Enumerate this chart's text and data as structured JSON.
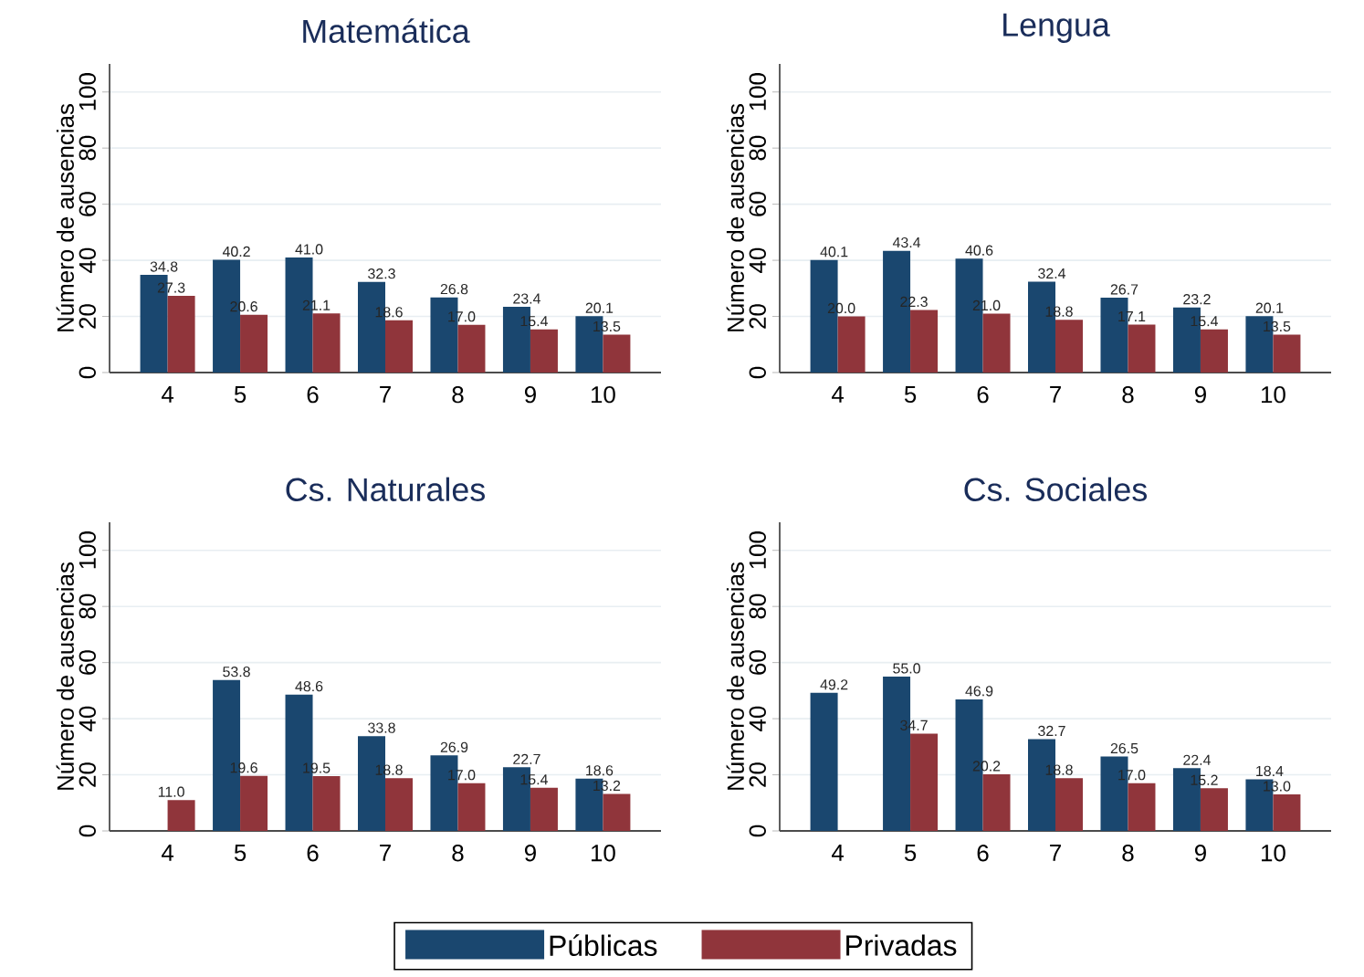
{
  "chart_data": [
    {
      "type": "bar",
      "title": "Matemática",
      "ylabel": "Número de ausencias",
      "categories": [
        "4",
        "5",
        "6",
        "7",
        "8",
        "9",
        "10"
      ],
      "ylim": [
        0,
        110
      ],
      "yticks": [
        0,
        20,
        40,
        60,
        80,
        100
      ],
      "grid": "y",
      "series": [
        {
          "color": "#1a476f",
          "values": [
            34.8,
            40.2,
            41.0,
            32.3,
            26.8,
            23.4,
            20.1
          ],
          "value_labels": [
            "34.8",
            "40.2",
            "41.0",
            "32.3",
            "26.8",
            "23.4",
            "20.1"
          ]
        },
        {
          "color": "#90353b",
          "values": [
            27.3,
            20.6,
            21.1,
            18.6,
            17.0,
            15.4,
            13.5
          ],
          "value_labels": [
            "27.3",
            "20.6",
            "21.1",
            "18.6",
            "17.0",
            "15.4",
            "13.5"
          ]
        }
      ]
    },
    {
      "type": "bar",
      "title": "Lengua",
      "ylabel": "Número de ausencias",
      "categories": [
        "4",
        "5",
        "6",
        "7",
        "8",
        "9",
        "10"
      ],
      "ylim": [
        0,
        110
      ],
      "yticks": [
        0,
        20,
        40,
        60,
        80,
        100
      ],
      "grid": "y",
      "series": [
        {
          "color": "#1a476f",
          "values": [
            40.1,
            43.4,
            40.6,
            32.4,
            26.7,
            23.2,
            20.1
          ],
          "value_labels": [
            "40.1",
            "43.4",
            "40.6",
            "32.4",
            "26.7",
            "23.2",
            "20.1"
          ]
        },
        {
          "color": "#90353b",
          "values": [
            20.0,
            22.3,
            21.0,
            18.8,
            17.1,
            15.4,
            13.5
          ],
          "value_labels": [
            "20.0",
            "22.3",
            "21.0",
            "18.8",
            "17.1",
            "15.4",
            "13.5"
          ]
        }
      ]
    },
    {
      "type": "bar",
      "title": "Cs. Naturales",
      "ylabel": "Número de ausencias",
      "categories": [
        "4",
        "5",
        "6",
        "7",
        "8",
        "9",
        "10"
      ],
      "ylim": [
        0,
        110
      ],
      "yticks": [
        0,
        20,
        40,
        60,
        80,
        100
      ],
      "grid": "y",
      "series": [
        {
          "color": "#1a476f",
          "values": [
            null,
            53.8,
            48.6,
            33.8,
            26.9,
            22.7,
            18.6
          ],
          "value_labels": [
            null,
            "53.8",
            "48.6",
            "33.8",
            "26.9",
            "22.7",
            "18.6"
          ]
        },
        {
          "color": "#90353b",
          "values": [
            11.0,
            19.6,
            19.5,
            18.8,
            17.0,
            15.4,
            13.2
          ],
          "value_labels": [
            "11.0",
            "19.6",
            "19.5",
            "18.8",
            "17.0",
            "15.4",
            "13.2"
          ]
        }
      ]
    },
    {
      "type": "bar",
      "title": "Cs. Sociales",
      "ylabel": "Número de ausencias",
      "categories": [
        "4",
        "5",
        "6",
        "7",
        "8",
        "9",
        "10"
      ],
      "ylim": [
        0,
        110
      ],
      "yticks": [
        0,
        20,
        40,
        60,
        80,
        100
      ],
      "grid": "y",
      "legend": "bottom",
      "series": [
        {
          "name": "Públicas",
          "color": "#1a476f",
          "values": [
            49.2,
            55.0,
            46.9,
            32.7,
            26.5,
            22.4,
            18.4
          ],
          "value_labels": [
            "49.2",
            "55.0",
            "46.9",
            "32.7",
            "26.5",
            "22.4",
            "18.4"
          ]
        },
        {
          "name": "Privadas",
          "color": "#90353b",
          "values": [
            null,
            34.7,
            20.2,
            18.8,
            17.0,
            15.2,
            13.0
          ],
          "value_labels": [
            null,
            "34.7",
            "20.2",
            "18.8",
            "17.0",
            "15.2",
            "13.0"
          ]
        }
      ]
    }
  ]
}
